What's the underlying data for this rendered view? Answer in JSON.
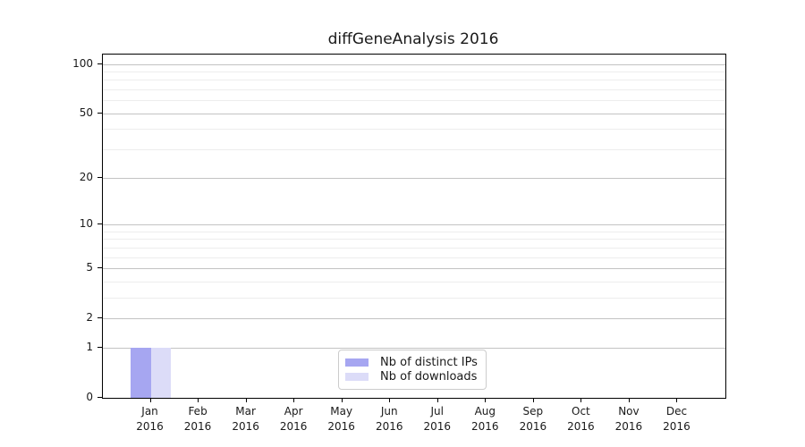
{
  "chart_data": {
    "type": "bar",
    "title": "diffGeneAnalysis 2016",
    "categories": [
      "Jan",
      "Feb",
      "Mar",
      "Apr",
      "May",
      "Jun",
      "Jul",
      "Aug",
      "Sep",
      "Oct",
      "Nov",
      "Dec"
    ],
    "category_year": "2016",
    "series": [
      {
        "name": "Nb of distinct IPs",
        "color": "#a6a6f1",
        "values": [
          1,
          0,
          0,
          0,
          0,
          0,
          0,
          0,
          0,
          0,
          0,
          0
        ]
      },
      {
        "name": "Nb of downloads",
        "color": "#dcdcf8",
        "values": [
          1,
          0,
          0,
          0,
          0,
          0,
          0,
          0,
          0,
          0,
          0,
          0
        ]
      }
    ],
    "xlabel": "",
    "ylabel": "",
    "yscale": "log1p",
    "ylim": [
      0,
      114
    ],
    "yticks": [
      0,
      1,
      2,
      5,
      10,
      20,
      50,
      100
    ],
    "yticks_minor": [
      3,
      4,
      6,
      7,
      8,
      9,
      30,
      40,
      60,
      70,
      80,
      90
    ],
    "grid": "horizontal",
    "legend_position": "lower center",
    "colors": {
      "axis": "#000000",
      "grid_major": "#c3c3c3",
      "grid_minor": "#ededed",
      "legend_border": "#cccccc",
      "text": "#1a1a1a"
    }
  }
}
